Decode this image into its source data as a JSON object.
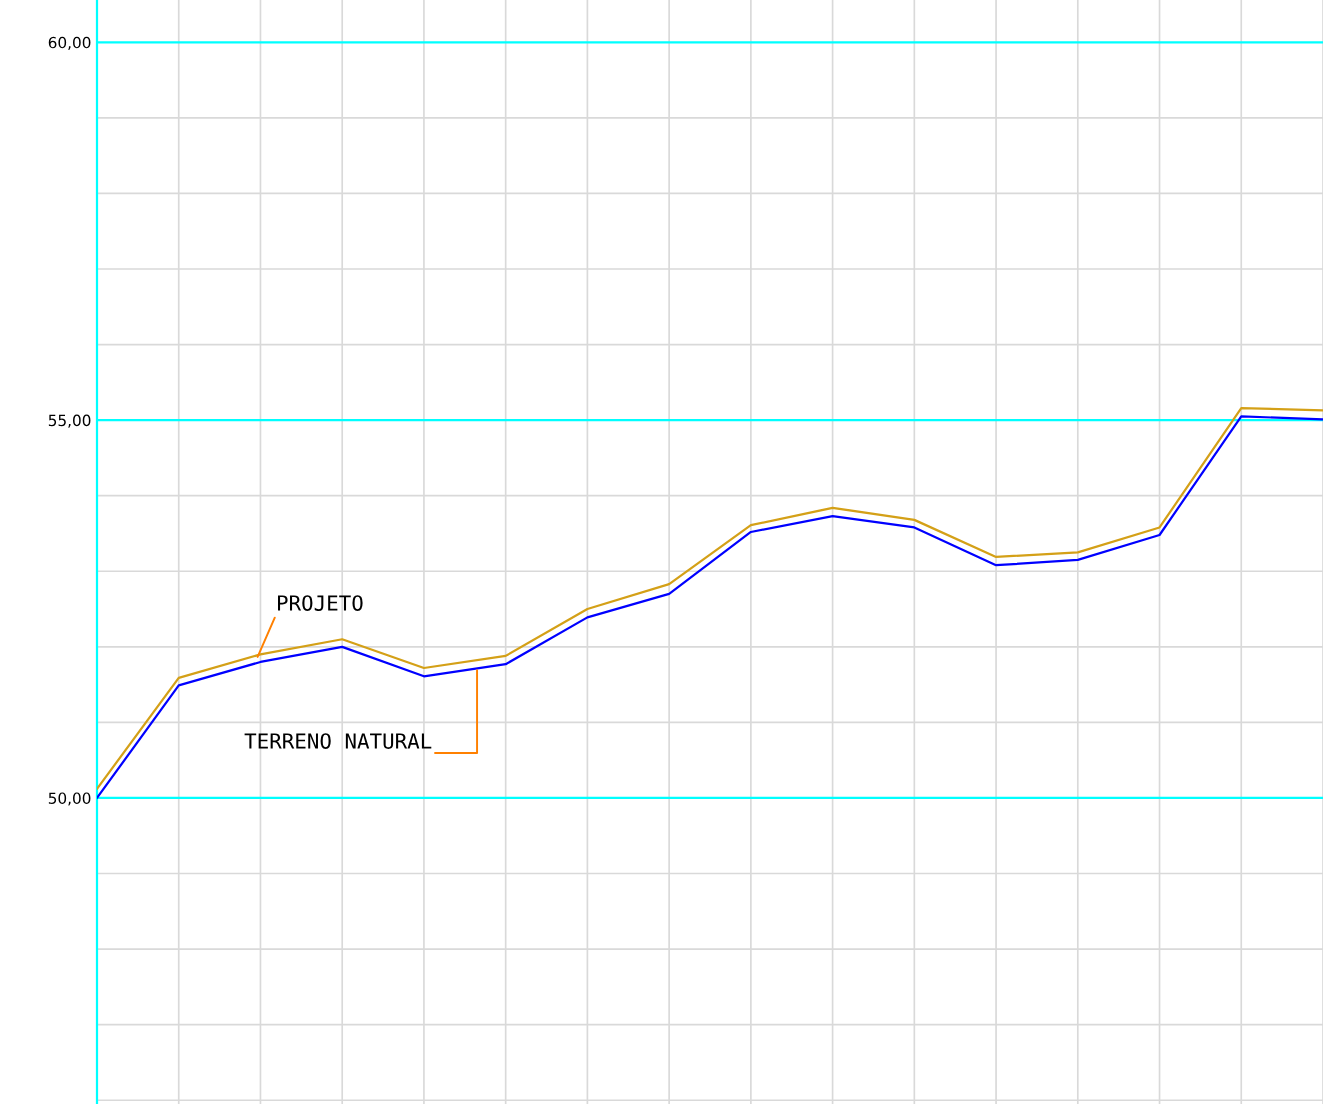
{
  "chart_data": {
    "type": "line",
    "categories": [
      null,
      null,
      null,
      null,
      null,
      null,
      null,
      null,
      null,
      null,
      null,
      null,
      null,
      null,
      null,
      null
    ],
    "series": [
      {
        "color": "#d4a017",
        "values": [
          50.12,
          51.59,
          51.9,
          52.1,
          51.72,
          51.88,
          52.5,
          52.83,
          53.61,
          53.84,
          53.68,
          53.19,
          53.25,
          53.58,
          55.16,
          55.13
        ]
      },
      {
        "color": "#0000ff",
        "values": [
          50.0,
          51.49,
          51.8,
          52.0,
          51.61,
          51.77,
          52.39,
          52.7,
          53.52,
          53.73,
          53.58,
          53.08,
          53.15,
          53.48,
          55.05,
          55.01
        ]
      }
    ],
    "ylim": [
      45.95,
      60.56
    ],
    "yticks": [
      {
        "value": 46,
        "label": null
      },
      {
        "value": 47,
        "label": null
      },
      {
        "value": 48,
        "label": null
      },
      {
        "value": 49,
        "label": null
      },
      {
        "value": 50,
        "label": "50,00"
      },
      {
        "value": 51,
        "label": null
      },
      {
        "value": 52,
        "label": null
      },
      {
        "value": 53,
        "label": null
      },
      {
        "value": 54,
        "label": null
      },
      {
        "value": 55,
        "label": "55,00"
      },
      {
        "value": 56,
        "label": null
      },
      {
        "value": 57,
        "label": null
      },
      {
        "value": 58,
        "label": null
      },
      {
        "value": 59,
        "label": null
      },
      {
        "value": 60,
        "label": "60,00"
      }
    ],
    "tick_labels": "y",
    "grid": true,
    "annotations": [
      "PROJETO",
      "TERRENO NATURAL"
    ]
  }
}
